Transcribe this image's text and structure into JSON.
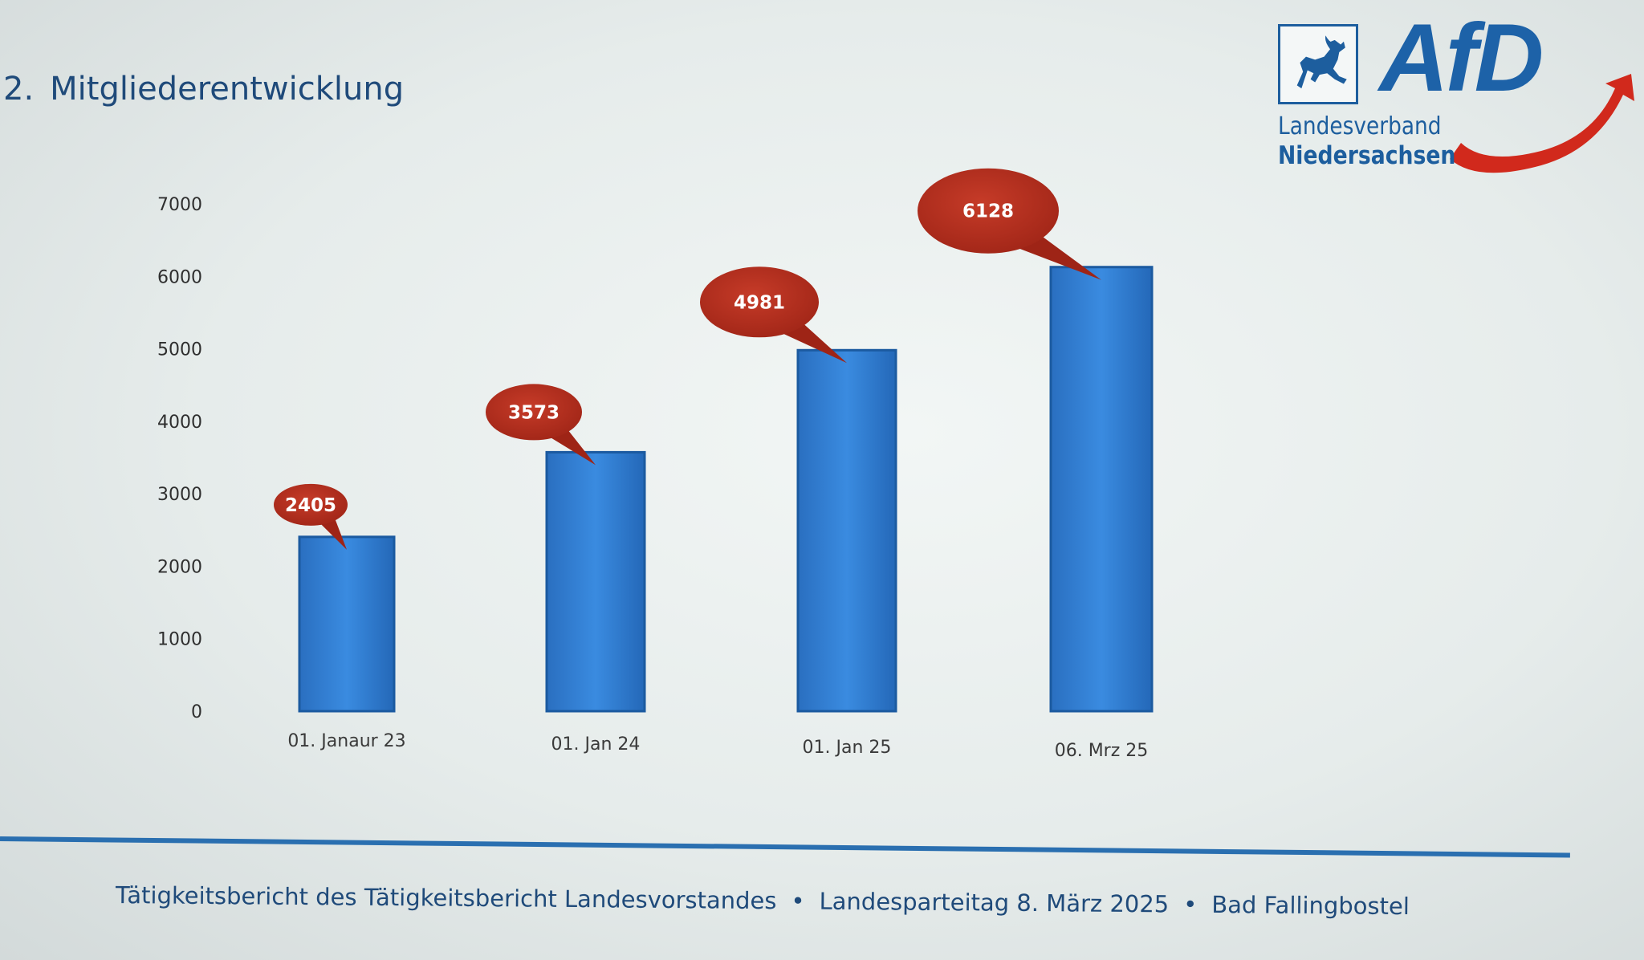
{
  "slide": {
    "number": "2.",
    "title": "Mitgliederentwicklung"
  },
  "logo": {
    "brand": "AfD",
    "line1": "Landesverband",
    "line2": "Niedersachsen",
    "icon": "horse-icon",
    "colors": {
      "blue": "#1d62a8",
      "red": "#d1291c"
    }
  },
  "chart_data": {
    "type": "bar",
    "categories": [
      "01. Janaur 23",
      "01. Jan 24",
      "01. Jan 25",
      "06. Mrz 25"
    ],
    "values": [
      2405,
      3573,
      4981,
      6128
    ],
    "data_labels": [
      "2405",
      "3573",
      "4981",
      "6128"
    ],
    "yticks": [
      "0",
      "1000",
      "2000",
      "3000",
      "4000",
      "5000",
      "6000",
      "7000"
    ],
    "ylim": [
      0,
      7000
    ],
    "grid": false,
    "legend": "none",
    "bar_color": "#2f7fd3",
    "label_bubble_color": "#b8301f"
  },
  "footer": {
    "part1": "Tätigkeitsbericht des Tätigkeitsbericht Landesvorstandes",
    "part2": "Landesparteitag 8. März 2025",
    "part3": "Bad Fallingbostel",
    "separator": "•"
  }
}
